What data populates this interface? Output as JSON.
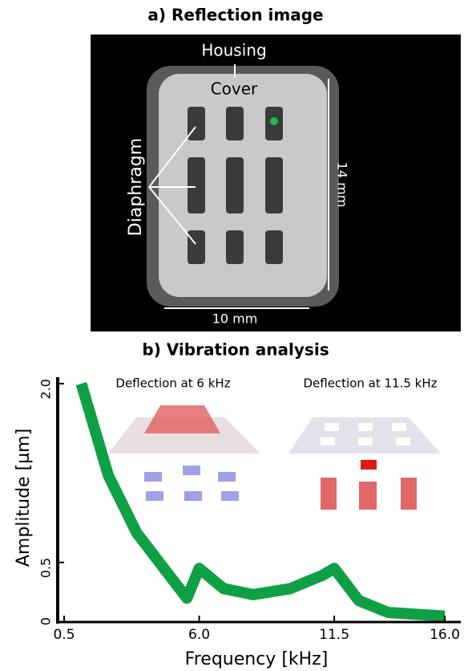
{
  "image_panel": {
    "title": "a) Reflection image",
    "housing": "Housing",
    "cover": "Cover",
    "diaphragm": "Diaphragm",
    "height": "14 mm",
    "width": "10 mm"
  },
  "chart_data": {
    "type": "line",
    "title": "b) Vibration analysis",
    "x_label": "Frequency [kHz]",
    "y_label": "Amplitude [µm]",
    "annotations": [
      "Deflection at 6 kHz",
      "Deflection at 11.5 kHz"
    ],
    "x": [
      1.2,
      2.3,
      3.45,
      4.9,
      5.5,
      6.0,
      7.0,
      8.2,
      9.7,
      11.0,
      11.5,
      12.5,
      13.7,
      16.0
    ],
    "series": [
      {
        "name": "Amplitude",
        "color": "#0fa046",
        "values": [
          2.0,
          1.23,
          0.75,
          0.36,
          0.2,
          0.45,
          0.28,
          0.23,
          0.28,
          0.39,
          0.45,
          0.18,
          0.08,
          0.05
        ]
      }
    ],
    "xlim": [
      0.5,
      16.0
    ],
    "xticks": [
      0.5,
      {
        "value": 6,
        "label": "6.0"
      },
      11.5,
      {
        "value": 16,
        "label": "16.0"
      }
    ],
    "ylim": [
      0,
      2.0
    ],
    "yticks": [
      0,
      0.5,
      {
        "value": 2,
        "label": "2.0"
      }
    ]
  }
}
